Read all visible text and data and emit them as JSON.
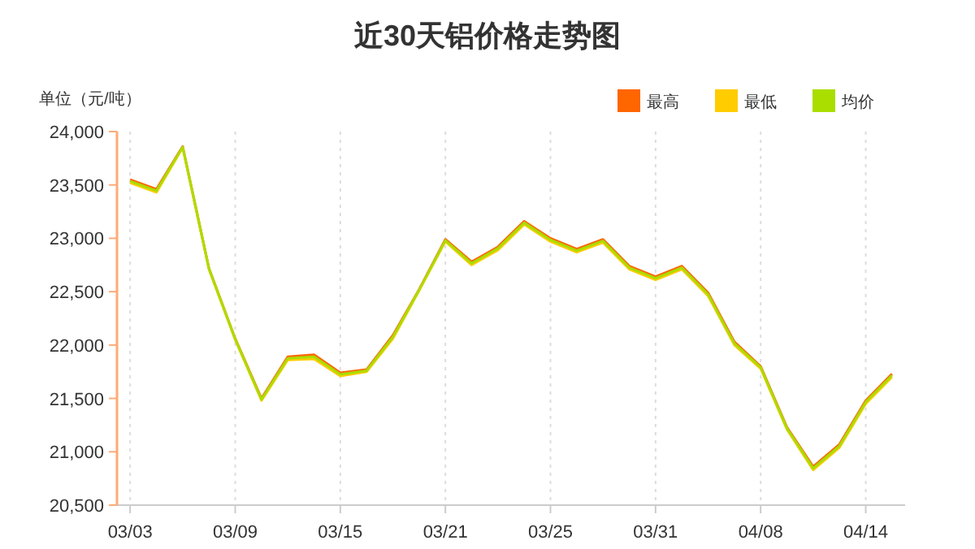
{
  "chart_data": {
    "type": "line",
    "title": "近30天铝价格走势图",
    "ylabel": "单位（元/吨）",
    "categories": [
      "03/03",
      null,
      null,
      null,
      "03/09",
      null,
      null,
      null,
      "03/15",
      null,
      null,
      null,
      "03/21",
      null,
      null,
      null,
      "03/25",
      null,
      null,
      null,
      "03/31",
      null,
      null,
      null,
      "04/08",
      null,
      null,
      null,
      "04/14",
      null
    ],
    "series": [
      {
        "name": "最高",
        "color": "#ff6600",
        "values": [
          23550,
          23460,
          23860,
          22720,
          22060,
          21500,
          21890,
          21910,
          21740,
          21770,
          22090,
          22520,
          22990,
          22780,
          22920,
          23160,
          23000,
          22900,
          22990,
          22740,
          22640,
          22740,
          22490,
          22030,
          21800,
          21230,
          20860,
          21070,
          21480,
          21730
        ]
      },
      {
        "name": "最低",
        "color": "#ffcc00",
        "values": [
          23520,
          23430,
          23850,
          22710,
          22050,
          21480,
          21860,
          21870,
          21710,
          21750,
          22060,
          22510,
          22970,
          22750,
          22890,
          23130,
          22970,
          22870,
          22960,
          22710,
          22610,
          22710,
          22460,
          22000,
          21780,
          21210,
          20830,
          21040,
          21450,
          21700
        ]
      },
      {
        "name": "均价",
        "color": "#aadd00",
        "values": [
          23535,
          23445,
          23855,
          22715,
          22055,
          21490,
          21875,
          21890,
          21725,
          21760,
          22075,
          22515,
          22980,
          22765,
          22905,
          23145,
          22985,
          22885,
          22975,
          22725,
          22625,
          22725,
          22475,
          22015,
          21790,
          21220,
          20845,
          21055,
          21465,
          21715
        ]
      }
    ],
    "ylim": [
      20500,
      24000
    ],
    "yticks": [
      {
        "value": 20500,
        "label": "20,500"
      },
      {
        "value": 21000,
        "label": "21,000"
      },
      {
        "value": 21500,
        "label": "21,500"
      },
      {
        "value": 22000,
        "label": "22,000"
      },
      {
        "value": 22500,
        "label": "22,500"
      },
      {
        "value": 23000,
        "label": "23,000"
      },
      {
        "value": 23500,
        "label": "23,500"
      },
      {
        "value": 24000,
        "label": "24,000"
      }
    ],
    "grid": "x",
    "legend": "top right",
    "marker": "none"
  }
}
